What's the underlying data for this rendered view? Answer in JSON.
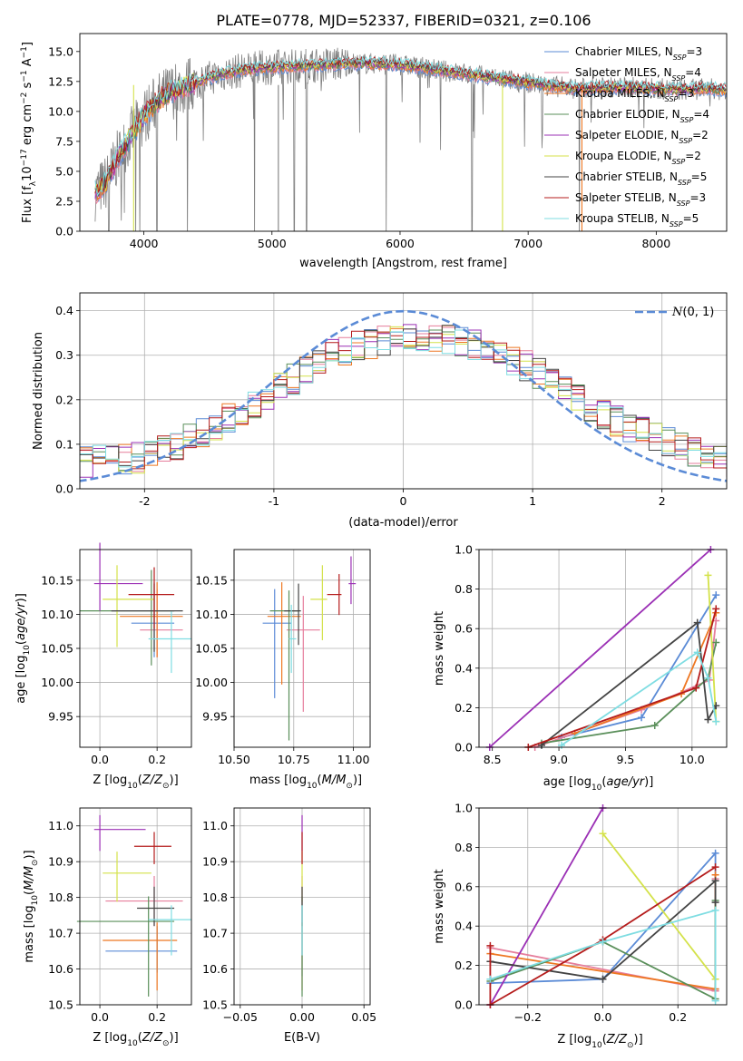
{
  "title": "PLATE=0778, MJD=52337, FIBERID=0321, z=0.106",
  "models": [
    {
      "name": "Chabrier MILES, N",
      "sub": "SSP",
      "suffix": "=3",
      "color": "#5b8bd6"
    },
    {
      "name": "Salpeter MILES, N",
      "sub": "SSP",
      "suffix": "=4",
      "color": "#e67e9c"
    },
    {
      "name": "Kroupa MILES, N",
      "sub": "SSP",
      "suffix": "=3",
      "color": "#ee7722"
    },
    {
      "name": "Chabrier ELODIE, N",
      "sub": "SSP",
      "suffix": "=4",
      "color": "#5a8f5a"
    },
    {
      "name": "Salpeter ELODIE, N",
      "sub": "SSP",
      "suffix": "=2",
      "color": "#9b30b5"
    },
    {
      "name": "Kroupa ELODIE, N",
      "sub": "SSP",
      "suffix": "=2",
      "color": "#d4e24a"
    },
    {
      "name": "Chabrier STELIB, N",
      "sub": "SSP",
      "suffix": "=5",
      "color": "#444444"
    },
    {
      "name": "Salpeter STELIB, N",
      "sub": "SSP",
      "suffix": "=3",
      "color": "#b51c1c"
    },
    {
      "name": "Kroupa STELIB, N",
      "sub": "SSP",
      "suffix": "=5",
      "color": "#7fdde2"
    }
  ],
  "chart_data": [
    {
      "id": "spectrum",
      "type": "line",
      "xlabel": "wavelength [Angstrom, rest frame]",
      "ylabel": "Flux [f_λ10^-17 erg cm^-2 s^-1 A^-1]",
      "xlim": [
        3500,
        8550
      ],
      "ylim": [
        0,
        16.5
      ],
      "xticks": [
        4000,
        5000,
        6000,
        7000,
        8000
      ],
      "yticks": [
        0.0,
        2.5,
        5.0,
        7.5,
        10.0,
        12.5,
        15.0
      ],
      "ytick_labels": [
        "0.0",
        "2.5",
        "5.0",
        "7.5",
        "10.0",
        "12.5",
        "15.0"
      ],
      "grid": false,
      "legend": "top-right",
      "data_envelope": {
        "x": [
          3620,
          3700,
          3800,
          3900,
          4000,
          4100,
          4200,
          4400,
          4600,
          4800,
          5000,
          5200,
          5400,
          5600,
          5800,
          6000,
          6200,
          6400,
          6600,
          6800,
          7000,
          7200,
          7400,
          7600,
          7800,
          8000,
          8200,
          8400,
          8550
        ],
        "y": [
          3.2,
          4.0,
          6.2,
          8.0,
          9.6,
          10.8,
          11.6,
          12.4,
          13.1,
          13.5,
          13.7,
          13.8,
          13.9,
          14.0,
          14.0,
          13.9,
          13.6,
          13.3,
          13.0,
          12.7,
          12.4,
          12.1,
          11.9,
          12.0,
          12.0,
          11.9,
          11.8,
          11.9,
          11.8
        ]
      },
      "absorption_lines": [
        3727,
        3933,
        3968,
        4102,
        4340,
        4861,
        5175,
        5270,
        5890,
        6563,
        6800,
        7400
      ]
    },
    {
      "id": "residuals",
      "type": "line",
      "xlabel": "(data-model)/error",
      "ylabel": "Normed distribution",
      "xlim": [
        -2.5,
        2.5
      ],
      "ylim": [
        0,
        0.44
      ],
      "xticks": [
        -2,
        -1,
        0,
        1,
        2
      ],
      "yticks": [
        0.0,
        0.1,
        0.2,
        0.3,
        0.4
      ],
      "grid": true,
      "legend": "top-right",
      "reference_curve": {
        "label": "N(0, 1)",
        "color": "#5b8bd6",
        "mean": 0,
        "sigma": 1
      },
      "histogram_envelope": {
        "x": [
          -2.5,
          -2.0,
          -1.5,
          -1.0,
          -0.5,
          0.0,
          0.5,
          1.0,
          1.5,
          2.0,
          2.5
        ],
        "y": [
          0.06,
          0.07,
          0.13,
          0.22,
          0.31,
          0.34,
          0.33,
          0.27,
          0.17,
          0.11,
          0.06
        ]
      }
    },
    {
      "id": "age_vs_Z",
      "type": "scatter",
      "xlabel": "Z [log10(Z/Z⊙)]",
      "ylabel": "age  [log10(age/yr)]",
      "xlim": [
        -0.07,
        0.32
      ],
      "ylim": [
        9.905,
        10.195
      ],
      "xticks": [
        0.0,
        0.2
      ],
      "xtick_labels": [
        "0.0",
        "0.2"
      ],
      "yticks": [
        9.95,
        10.0,
        10.05,
        10.1,
        10.15
      ],
      "ytick_labels": [
        "9.95",
        "10.00",
        "10.05",
        "10.10",
        "10.15"
      ],
      "grid": true,
      "points": [
        {
          "x": 0.19,
          "y": 10.087,
          "xerr": [
            0.08,
            0.07
          ],
          "yerr": [
            0.05,
            0.06
          ]
        },
        {
          "x": 0.2,
          "y": 10.077,
          "xerr": [
            0.06,
            0.09
          ],
          "yerr": [
            0.04,
            0.06
          ]
        },
        {
          "x": 0.2,
          "y": 10.097,
          "xerr": [
            0.13,
            0.09
          ],
          "yerr": [
            0.06,
            0.05
          ]
        },
        {
          "x": 0.18,
          "y": 10.105,
          "xerr": [
            0.25,
            0.08
          ],
          "yerr": [
            0.08,
            0.06
          ]
        },
        {
          "x": 0.0,
          "y": 10.145,
          "xerr": [
            0.02,
            0.15
          ],
          "yerr": [
            0.04,
            0.06
          ]
        },
        {
          "x": 0.06,
          "y": 10.122,
          "xerr": [
            0.05,
            0.13
          ],
          "yerr": [
            0.07,
            0.05
          ]
        },
        {
          "x": 0.19,
          "y": 10.105,
          "xerr": [
            0.15,
            0.1
          ],
          "yerr": [
            0.06,
            0.04
          ]
        },
        {
          "x": 0.19,
          "y": 10.129,
          "xerr": [
            0.09,
            0.07
          ],
          "yerr": [
            0.05,
            0.04
          ]
        },
        {
          "x": 0.25,
          "y": 10.064,
          "xerr": [
            0.08,
            0.07
          ],
          "yerr": [
            0.05,
            0.04
          ]
        }
      ]
    },
    {
      "id": "age_vs_mass",
      "type": "scatter",
      "xlabel": "mass [log10(M/M⊙)]",
      "ylabel": "",
      "xlim": [
        10.5,
        11.07
      ],
      "ylim": [
        9.905,
        10.195
      ],
      "xticks": [
        10.5,
        10.75,
        11.0
      ],
      "xtick_labels": [
        "10.50",
        "10.75",
        "11.00"
      ],
      "yticks": [
        9.95,
        10.0,
        10.05,
        10.1,
        10.15
      ],
      "ytick_labels": [
        "9.95",
        "10.00",
        "10.05",
        "10.10",
        "10.15"
      ],
      "grid": true,
      "points": [
        {
          "x": 10.67,
          "y": 10.087,
          "xerr": [
            0.05,
            0.07
          ],
          "yerr": [
            0.11,
            0.05
          ]
        },
        {
          "x": 10.79,
          "y": 10.077,
          "xerr": [
            0.07,
            0.07
          ],
          "yerr": [
            0.12,
            0.05
          ]
        },
        {
          "x": 10.7,
          "y": 10.097,
          "xerr": [
            0.06,
            0.08
          ],
          "yerr": [
            0.1,
            0.05
          ]
        },
        {
          "x": 10.73,
          "y": 10.105,
          "xerr": [
            0.08,
            0.04
          ],
          "yerr": [
            0.19,
            0.03
          ]
        },
        {
          "x": 10.99,
          "y": 10.145,
          "xerr": [
            0.01,
            0.02
          ],
          "yerr": [
            0.03,
            0.04
          ]
        },
        {
          "x": 10.87,
          "y": 10.122,
          "xerr": [
            0.05,
            0.02
          ],
          "yerr": [
            0.06,
            0.05
          ]
        },
        {
          "x": 10.77,
          "y": 10.105,
          "xerr": [
            0.06,
            0.01
          ],
          "yerr": [
            0.05,
            0.04
          ]
        },
        {
          "x": 10.94,
          "y": 10.129,
          "xerr": [
            0.05,
            0.01
          ],
          "yerr": [
            0.03,
            0.03
          ]
        },
        {
          "x": 10.74,
          "y": 10.064,
          "xerr": [
            0.01,
            0.02
          ],
          "yerr": [
            0.05,
            0.05
          ]
        }
      ]
    },
    {
      "id": "mass_weight_vs_age",
      "type": "line",
      "xlabel": "age  [log10(age/yr)]",
      "ylabel": "mass weight",
      "xlim": [
        8.4,
        10.26
      ],
      "ylim": [
        0,
        1
      ],
      "xticks": [
        8.5,
        9.0,
        9.5,
        10.0
      ],
      "xtick_labels": [
        "8.5",
        "9.0",
        "9.5",
        "10.0"
      ],
      "yticks": [
        0.0,
        0.2,
        0.4,
        0.6,
        0.8,
        1.0
      ],
      "grid": true,
      "series": [
        {
          "x": [
            9.02,
            9.62,
            10.18
          ],
          "y": [
            0.05,
            0.15,
            0.77
          ]
        },
        {
          "x": [
            8.82,
            9.62,
            10.13,
            10.18
          ],
          "y": [
            0.0,
            0.19,
            0.34,
            0.64
          ]
        },
        {
          "x": [
            9.12,
            9.92,
            10.18
          ],
          "y": [
            0.07,
            0.27,
            0.68
          ]
        },
        {
          "x": [
            8.87,
            9.72,
            10.12,
            10.18
          ],
          "y": [
            0.02,
            0.11,
            0.35,
            0.53
          ]
        },
        {
          "x": [
            8.48,
            10.14
          ],
          "y": [
            0.0,
            1.0
          ]
        },
        {
          "x": [
            10.12,
            10.18
          ],
          "y": [
            0.87,
            0.13
          ]
        },
        {
          "x": [
            8.87,
            10.04,
            10.12,
            10.18
          ],
          "y": [
            0.01,
            0.63,
            0.14,
            0.21
          ]
        },
        {
          "x": [
            8.77,
            10.03,
            10.18
          ],
          "y": [
            0.0,
            0.3,
            0.7
          ]
        },
        {
          "x": [
            9.02,
            10.04,
            10.12,
            10.18
          ],
          "y": [
            0.01,
            0.48,
            0.35,
            0.13
          ]
        }
      ]
    },
    {
      "id": "mass_vs_Z",
      "type": "scatter",
      "xlabel": "Z [log10(Z/Z⊙)]",
      "ylabel": "mass [log10(M/M⊙)]",
      "xlim": [
        -0.07,
        0.32
      ],
      "ylim": [
        10.5,
        11.05
      ],
      "xticks": [
        0.0,
        0.2
      ],
      "xtick_labels": [
        "0.0",
        "0.2"
      ],
      "yticks": [
        10.5,
        10.6,
        10.7,
        10.8,
        10.9,
        11.0
      ],
      "ytick_labels": [
        "10.5",
        "10.6",
        "10.7",
        "10.8",
        "10.9",
        "11.0"
      ],
      "grid": true,
      "points": [
        {
          "x": 0.2,
          "y": 10.65,
          "xerr": [
            0.18,
            0.07
          ],
          "yerr": [
            0.06,
            0.07
          ]
        },
        {
          "x": 0.19,
          "y": 10.79,
          "xerr": [
            0.17,
            0.1
          ],
          "yerr": [
            0.07,
            0.07
          ]
        },
        {
          "x": 0.2,
          "y": 10.68,
          "xerr": [
            0.19,
            0.07
          ],
          "yerr": [
            0.14,
            0.05
          ]
        },
        {
          "x": 0.17,
          "y": 10.733,
          "xerr": [
            0.25,
            0.09
          ],
          "yerr": [
            0.21,
            0.07
          ]
        },
        {
          "x": 0.0,
          "y": 10.99,
          "xerr": [
            0.02,
            0.16
          ],
          "yerr": [
            0.06,
            0.04
          ]
        },
        {
          "x": 0.06,
          "y": 10.868,
          "xerr": [
            0.05,
            0.12
          ],
          "yerr": [
            0.08,
            0.06
          ]
        },
        {
          "x": 0.19,
          "y": 10.77,
          "xerr": [
            0.06,
            0.07
          ],
          "yerr": [
            0.05,
            0.06
          ]
        },
        {
          "x": 0.19,
          "y": 10.943,
          "xerr": [
            0.07,
            0.06
          ],
          "yerr": [
            0.05,
            0.04
          ]
        },
        {
          "x": 0.25,
          "y": 10.738,
          "xerr": [
            0.08,
            0.07
          ],
          "yerr": [
            0.1,
            0.04
          ]
        }
      ]
    },
    {
      "id": "mass_vs_ebv",
      "type": "scatter",
      "xlabel": "E(B-V)",
      "ylabel": "",
      "xlim": [
        -0.055,
        0.055
      ],
      "ylim": [
        10.5,
        11.05
      ],
      "xticks": [
        -0.05,
        0.0,
        0.05
      ],
      "xtick_labels": [
        "−0.05",
        "0.00",
        "0.05"
      ],
      "yticks": [
        10.5,
        10.6,
        10.7,
        10.8,
        10.9,
        11.0
      ],
      "ytick_labels": [
        "10.5",
        "10.6",
        "10.7",
        "10.8",
        "10.9",
        "11.0"
      ],
      "grid": true,
      "points": [
        {
          "x": 0.0,
          "y": 10.65,
          "xerr": [
            0,
            0
          ],
          "yerr": [
            0.07,
            0.07
          ]
        },
        {
          "x": 0.0,
          "y": 10.79,
          "xerr": [
            0,
            0
          ],
          "yerr": [
            0.07,
            0.07
          ]
        },
        {
          "x": 0.0,
          "y": 10.68,
          "xerr": [
            0,
            0
          ],
          "yerr": [
            0.14,
            0.05
          ]
        },
        {
          "x": 0.0,
          "y": 10.733,
          "xerr": [
            0,
            0
          ],
          "yerr": [
            0.21,
            0.07
          ]
        },
        {
          "x": 0.0,
          "y": 10.99,
          "xerr": [
            0,
            0
          ],
          "yerr": [
            0.06,
            0.04
          ]
        },
        {
          "x": 0.0,
          "y": 10.868,
          "xerr": [
            0,
            0
          ],
          "yerr": [
            0.08,
            0.06
          ]
        },
        {
          "x": 0.0,
          "y": 10.77,
          "xerr": [
            0,
            0
          ],
          "yerr": [
            0.05,
            0.06
          ]
        },
        {
          "x": 0.0,
          "y": 10.943,
          "xerr": [
            0,
            0
          ],
          "yerr": [
            0.05,
            0.04
          ]
        },
        {
          "x": 0.0,
          "y": 10.738,
          "xerr": [
            0,
            0
          ],
          "yerr": [
            0.1,
            0.04
          ]
        }
      ]
    },
    {
      "id": "mass_weight_vs_Z",
      "type": "line",
      "xlabel": "Z [log10(Z/Z⊙)]",
      "ylabel": "mass weight",
      "xlim": [
        -0.33,
        0.33
      ],
      "ylim": [
        0,
        1
      ],
      "xticks": [
        -0.2,
        0.0,
        0.2
      ],
      "xtick_labels": [
        "−0.2",
        "0.0",
        "0.2"
      ],
      "yticks": [
        0.0,
        0.2,
        0.4,
        0.6,
        0.8,
        1.0
      ],
      "grid": true,
      "series": [
        {
          "x": [
            -0.3,
            0.0,
            0.3,
            0.3
          ],
          "y": [
            0.11,
            0.13,
            0.77,
            0.08
          ]
        },
        {
          "x": [
            -0.3,
            0.3,
            0.3
          ],
          "y": [
            0.29,
            0.07,
            0.64
          ]
        },
        {
          "x": [
            -0.3,
            0.3,
            0.3
          ],
          "y": [
            0.26,
            0.08,
            0.66
          ]
        },
        {
          "x": [
            -0.3,
            0.0,
            0.3,
            0.3
          ],
          "y": [
            0.12,
            0.32,
            0.03,
            0.53
          ]
        },
        {
          "x": [
            -0.3,
            0.0
          ],
          "y": [
            0.0,
            1.0
          ]
        },
        {
          "x": [
            0.0,
            0.3
          ],
          "y": [
            0.87,
            0.13
          ]
        },
        {
          "x": [
            -0.3,
            0.0,
            0.3,
            0.3
          ],
          "y": [
            0.22,
            0.13,
            0.63,
            0.52
          ]
        },
        {
          "x": [
            -0.3,
            -0.3,
            0.0,
            0.3
          ],
          "y": [
            0.3,
            0.0,
            0.33,
            0.7
          ]
        },
        {
          "x": [
            -0.3,
            0.0,
            0.3,
            0.3
          ],
          "y": [
            0.13,
            0.32,
            0.48,
            0.02
          ]
        }
      ]
    }
  ]
}
